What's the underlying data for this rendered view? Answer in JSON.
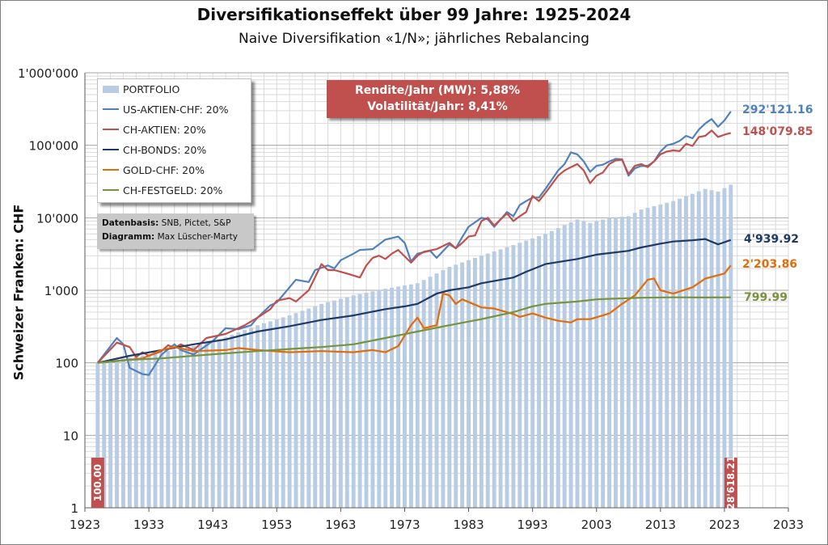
{
  "title": "Diversifikationseffekt über 99 Jahre: 1925-2024",
  "subtitle": "Naive Diversifikation «1/N»; jährliches Rebalancing",
  "metrics": {
    "line1": "Rendite/Jahr (MW): 5,88%",
    "line2": "Volatilität/Jahr: 8,41%",
    "bg_color": "#c0504d"
  },
  "source_box": {
    "line1_label": "Datenbasis:",
    "line1_value": "SNB, Pictet, S&P",
    "line2_label": "Diagramm:",
    "line2_value": "Max Lüscher-Marty"
  },
  "end_labels": {
    "us_aktien": "292'121.16",
    "ch_aktien": "148'079.85",
    "ch_bonds": "4'939.92",
    "gold": "2'203.86",
    "festgeld": "799.99"
  },
  "bar_labels": {
    "start": "100.00",
    "end": "28'618.21"
  },
  "chart_data": {
    "type": "bar",
    "ylabel": "Schweizer Franken: CHF",
    "xlabel": "",
    "log_y": true,
    "ylim": [
      1,
      1000000
    ],
    "xlim": [
      1923,
      2033
    ],
    "x_ticks": [
      "1923",
      "1933",
      "1943",
      "1953",
      "1963",
      "1973",
      "1983",
      "1993",
      "2003",
      "2013",
      "2023",
      "2033"
    ],
    "y_ticks": [
      "1",
      "10",
      "100",
      "1'000",
      "10'000",
      "100'000",
      "1'000'000"
    ],
    "grid": true,
    "legend_position": "top-left",
    "series": [
      {
        "name": "PORTFOLIO",
        "kind": "bar",
        "color": "#b8cce4",
        "points": [
          [
            1925,
            100
          ],
          [
            1930,
            118
          ],
          [
            1935,
            140
          ],
          [
            1940,
            170
          ],
          [
            1945,
            225
          ],
          [
            1950,
            330
          ],
          [
            1955,
            450
          ],
          [
            1960,
            650
          ],
          [
            1965,
            850
          ],
          [
            1970,
            1050
          ],
          [
            1975,
            1250
          ],
          [
            1980,
            2100
          ],
          [
            1985,
            3000
          ],
          [
            1990,
            4200
          ],
          [
            1995,
            6000
          ],
          [
            2000,
            9500
          ],
          [
            2002,
            8500
          ],
          [
            2005,
            10000
          ],
          [
            2008,
            10500
          ],
          [
            2010,
            13000
          ],
          [
            2015,
            17000
          ],
          [
            2020,
            25000
          ],
          [
            2022,
            23000
          ],
          [
            2024,
            28618.21
          ]
        ]
      },
      {
        "name": "US-AKTIEN-CHF: 20%",
        "kind": "line",
        "color": "#4f81bd",
        "points": [
          [
            1925,
            100
          ],
          [
            1928,
            220
          ],
          [
            1929,
            180
          ],
          [
            1930,
            85
          ],
          [
            1932,
            70
          ],
          [
            1933,
            68
          ],
          [
            1935,
            130
          ],
          [
            1937,
            180
          ],
          [
            1938,
            150
          ],
          [
            1940,
            130
          ],
          [
            1943,
            200
          ],
          [
            1945,
            300
          ],
          [
            1947,
            290
          ],
          [
            1949,
            330
          ],
          [
            1950,
            420
          ],
          [
            1952,
            620
          ],
          [
            1953,
            680
          ],
          [
            1955,
            1100
          ],
          [
            1956,
            1400
          ],
          [
            1958,
            1300
          ],
          [
            1959,
            1900
          ],
          [
            1961,
            2200
          ],
          [
            1962,
            2000
          ],
          [
            1963,
            2600
          ],
          [
            1965,
            3200
          ],
          [
            1966,
            3600
          ],
          [
            1968,
            3700
          ],
          [
            1970,
            5000
          ],
          [
            1972,
            5500
          ],
          [
            1973,
            4500
          ],
          [
            1974,
            2500
          ],
          [
            1975,
            3200
          ],
          [
            1977,
            3500
          ],
          [
            1978,
            2800
          ],
          [
            1980,
            4300
          ],
          [
            1981,
            3800
          ],
          [
            1982,
            5400
          ],
          [
            1983,
            7500
          ],
          [
            1985,
            10000
          ],
          [
            1986,
            9500
          ],
          [
            1987,
            7500
          ],
          [
            1988,
            9500
          ],
          [
            1989,
            12000
          ],
          [
            1990,
            10500
          ],
          [
            1991,
            15000
          ],
          [
            1992,
            17000
          ],
          [
            1993,
            19000
          ],
          [
            1994,
            19000
          ],
          [
            1995,
            25000
          ],
          [
            1997,
            45000
          ],
          [
            1998,
            55000
          ],
          [
            1999,
            80000
          ],
          [
            2000,
            75000
          ],
          [
            2001,
            60000
          ],
          [
            2002,
            43000
          ],
          [
            2003,
            52000
          ],
          [
            2004,
            54000
          ],
          [
            2005,
            60000
          ],
          [
            2006,
            65000
          ],
          [
            2007,
            64000
          ],
          [
            2008,
            38000
          ],
          [
            2009,
            48000
          ],
          [
            2010,
            52000
          ],
          [
            2011,
            52000
          ],
          [
            2012,
            60000
          ],
          [
            2013,
            82000
          ],
          [
            2014,
            100000
          ],
          [
            2015,
            105000
          ],
          [
            2016,
            115000
          ],
          [
            2017,
            135000
          ],
          [
            2018,
            125000
          ],
          [
            2019,
            165000
          ],
          [
            2020,
            200000
          ],
          [
            2021,
            230000
          ],
          [
            2022,
            180000
          ],
          [
            2023,
            220000
          ],
          [
            2024,
            292121.16
          ]
        ]
      },
      {
        "name": "CH-AKTIEN: 20%",
        "kind": "line",
        "color": "#c0504d",
        "points": [
          [
            1925,
            100
          ],
          [
            1928,
            190
          ],
          [
            1930,
            165
          ],
          [
            1931,
            120
          ],
          [
            1932,
            140
          ],
          [
            1933,
            125
          ],
          [
            1935,
            145
          ],
          [
            1936,
            175
          ],
          [
            1937,
            160
          ],
          [
            1938,
            180
          ],
          [
            1940,
            150
          ],
          [
            1942,
            220
          ],
          [
            1945,
            250
          ],
          [
            1948,
            330
          ],
          [
            1950,
            420
          ],
          [
            1952,
            550
          ],
          [
            1953,
            720
          ],
          [
            1955,
            780
          ],
          [
            1956,
            700
          ],
          [
            1958,
            1000
          ],
          [
            1960,
            2300
          ],
          [
            1961,
            1900
          ],
          [
            1962,
            1900
          ],
          [
            1964,
            1700
          ],
          [
            1966,
            1500
          ],
          [
            1967,
            2200
          ],
          [
            1968,
            2800
          ],
          [
            1969,
            3000
          ],
          [
            1970,
            2700
          ],
          [
            1971,
            3200
          ],
          [
            1972,
            3600
          ],
          [
            1974,
            2400
          ],
          [
            1975,
            3000
          ],
          [
            1976,
            3400
          ],
          [
            1978,
            3700
          ],
          [
            1980,
            4500
          ],
          [
            1981,
            3800
          ],
          [
            1982,
            4500
          ],
          [
            1983,
            5500
          ],
          [
            1984,
            5700
          ],
          [
            1985,
            9000
          ],
          [
            1986,
            10000
          ],
          [
            1987,
            7800
          ],
          [
            1988,
            9500
          ],
          [
            1989,
            11500
          ],
          [
            1990,
            9000
          ],
          [
            1991,
            10500
          ],
          [
            1992,
            12000
          ],
          [
            1993,
            20000
          ],
          [
            1994,
            17000
          ],
          [
            1995,
            22000
          ],
          [
            1997,
            38000
          ],
          [
            1998,
            45000
          ],
          [
            1999,
            50000
          ],
          [
            2000,
            55000
          ],
          [
            2001,
            45000
          ],
          [
            2002,
            30000
          ],
          [
            2003,
            38000
          ],
          [
            2004,
            42000
          ],
          [
            2005,
            55000
          ],
          [
            2006,
            62000
          ],
          [
            2007,
            63000
          ],
          [
            2008,
            40000
          ],
          [
            2009,
            52000
          ],
          [
            2010,
            55000
          ],
          [
            2011,
            50000
          ],
          [
            2012,
            60000
          ],
          [
            2013,
            75000
          ],
          [
            2014,
            82000
          ],
          [
            2015,
            85000
          ],
          [
            2016,
            83000
          ],
          [
            2017,
            105000
          ],
          [
            2018,
            98000
          ],
          [
            2019,
            130000
          ],
          [
            2020,
            135000
          ],
          [
            2021,
            160000
          ],
          [
            2022,
            130000
          ],
          [
            2023,
            140000
          ],
          [
            2024,
            148079.85
          ]
        ]
      },
      {
        "name": "CH-BONDS: 20%",
        "kind": "line",
        "color": "#1f3864",
        "points": [
          [
            1925,
            100
          ],
          [
            1930,
            125
          ],
          [
            1935,
            150
          ],
          [
            1940,
            180
          ],
          [
            1945,
            210
          ],
          [
            1950,
            270
          ],
          [
            1955,
            320
          ],
          [
            1960,
            390
          ],
          [
            1965,
            450
          ],
          [
            1970,
            550
          ],
          [
            1973,
            600
          ],
          [
            1975,
            650
          ],
          [
            1978,
            900
          ],
          [
            1980,
            1000
          ],
          [
            1983,
            1100
          ],
          [
            1985,
            1250
          ],
          [
            1990,
            1500
          ],
          [
            1992,
            1800
          ],
          [
            1995,
            2300
          ],
          [
            2000,
            2700
          ],
          [
            2003,
            3100
          ],
          [
            2008,
            3500
          ],
          [
            2010,
            3900
          ],
          [
            2013,
            4400
          ],
          [
            2015,
            4700
          ],
          [
            2018,
            4900
          ],
          [
            2020,
            5100
          ],
          [
            2022,
            4300
          ],
          [
            2024,
            4939.92
          ]
        ]
      },
      {
        "name": "GOLD-CHF: 20%",
        "kind": "line",
        "color": "#e36c09",
        "points": [
          [
            1925,
            100
          ],
          [
            1932,
            115
          ],
          [
            1935,
            150
          ],
          [
            1937,
            165
          ],
          [
            1940,
            145
          ],
          [
            1945,
            150
          ],
          [
            1947,
            160
          ],
          [
            1950,
            150
          ],
          [
            1955,
            140
          ],
          [
            1960,
            145
          ],
          [
            1965,
            140
          ],
          [
            1968,
            150
          ],
          [
            1970,
            140
          ],
          [
            1972,
            170
          ],
          [
            1974,
            330
          ],
          [
            1975,
            420
          ],
          [
            1976,
            300
          ],
          [
            1978,
            330
          ],
          [
            1979,
            900
          ],
          [
            1980,
            850
          ],
          [
            1981,
            650
          ],
          [
            1982,
            750
          ],
          [
            1985,
            580
          ],
          [
            1987,
            560
          ],
          [
            1990,
            470
          ],
          [
            1991,
            430
          ],
          [
            1993,
            480
          ],
          [
            1995,
            420
          ],
          [
            1997,
            380
          ],
          [
            1999,
            360
          ],
          [
            2000,
            400
          ],
          [
            2002,
            400
          ],
          [
            2004,
            450
          ],
          [
            2005,
            480
          ],
          [
            2007,
            650
          ],
          [
            2009,
            850
          ],
          [
            2011,
            1400
          ],
          [
            2012,
            1450
          ],
          [
            2013,
            1000
          ],
          [
            2015,
            900
          ],
          [
            2018,
            1100
          ],
          [
            2020,
            1450
          ],
          [
            2023,
            1700
          ],
          [
            2024,
            2203.86
          ]
        ]
      },
      {
        "name": "CH-FESTGELD: 20%",
        "kind": "line",
        "color": "#77933c",
        "points": [
          [
            1925,
            100
          ],
          [
            1930,
            110
          ],
          [
            1935,
            115
          ],
          [
            1940,
            125
          ],
          [
            1945,
            135
          ],
          [
            1950,
            145
          ],
          [
            1955,
            155
          ],
          [
            1960,
            165
          ],
          [
            1965,
            180
          ],
          [
            1970,
            220
          ],
          [
            1975,
            270
          ],
          [
            1980,
            330
          ],
          [
            1985,
            400
          ],
          [
            1990,
            500
          ],
          [
            1993,
            600
          ],
          [
            1995,
            650
          ],
          [
            2000,
            700
          ],
          [
            2003,
            750
          ],
          [
            2010,
            790
          ],
          [
            2015,
            800
          ],
          [
            2020,
            795
          ],
          [
            2024,
            799.99
          ]
        ]
      }
    ]
  }
}
